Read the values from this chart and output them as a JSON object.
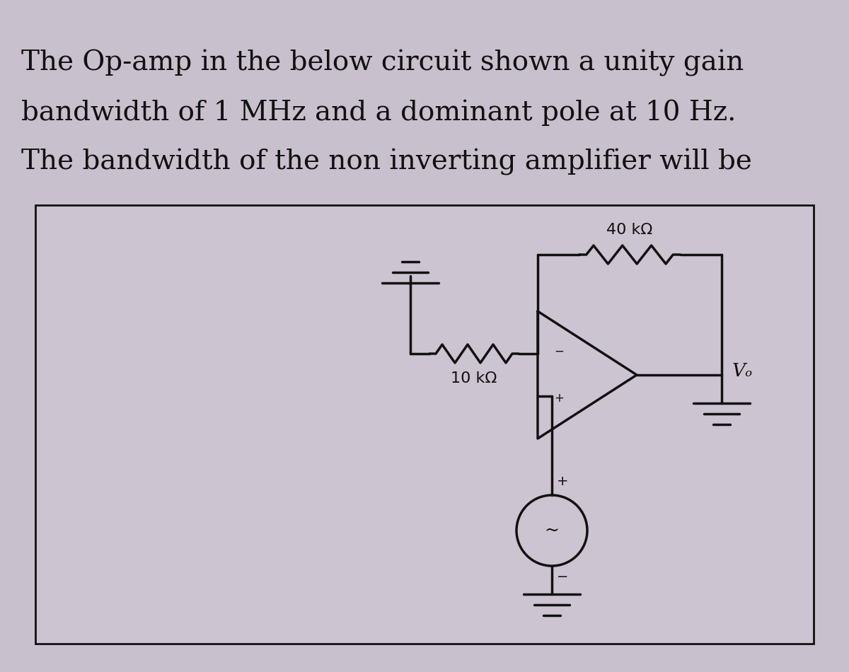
{
  "title_line1": "The Op-amp in the below circuit shown a unity gain",
  "title_line2": "bandwidth of 1 MHz and a dominant pole at 10 Hz.",
  "title_line3": "The bandwidth of the non inverting amplifier will be",
  "title_fontsize": 28,
  "bg_color": "#c8c0cc",
  "box_bg": "#ccc4d0",
  "box_edge": "#111111",
  "r1_label": "10 kΩ",
  "r2_label": "40 kΩ",
  "vo_label": "Vₒ",
  "text_color": "#111111",
  "line_color": "#111111",
  "line_width": 2.5
}
